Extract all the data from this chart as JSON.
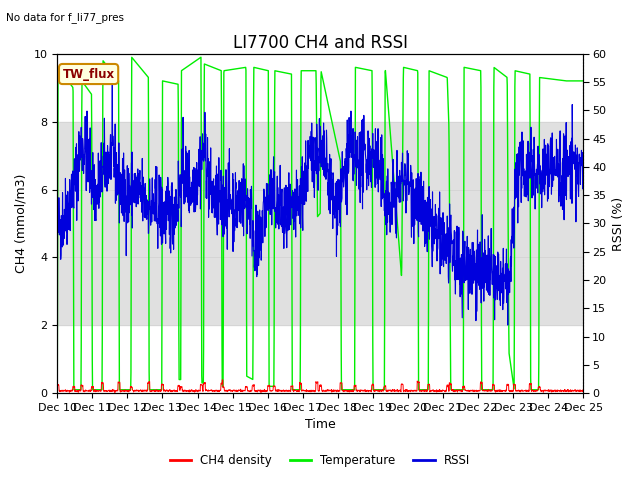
{
  "title": "LI7700 CH4 and RSSI",
  "subtitle": "No data for f_li77_pres",
  "annotation": "TW_flux",
  "xlabel": "Time",
  "ylabel_left": "CH4 (mmol/m3)",
  "ylabel_right": "RSSI (%)",
  "ylim_left": [
    0,
    10
  ],
  "ylim_right": [
    0,
    60
  ],
  "x_start": 10,
  "x_end": 25,
  "x_ticks": [
    10,
    11,
    12,
    13,
    14,
    15,
    16,
    17,
    18,
    19,
    20,
    21,
    22,
    23,
    24,
    25
  ],
  "x_tick_labels": [
    "Dec 10",
    "Dec 11",
    "Dec 12",
    "Dec 13",
    "Dec 14",
    "Dec 15",
    "Dec 16",
    "Dec 17",
    "Dec 18",
    "Dec 19",
    "Dec 20",
    "Dec 21",
    "Dec 22",
    "Dec 23",
    "Dec 24",
    "Dec 25"
  ],
  "bg_band_y1": 2,
  "bg_band_y2": 8,
  "bg_color": "#e0e0e0",
  "line_colors": {
    "ch4_density": "#ff0000",
    "temperature": "#00ee00",
    "rssi": "#0000dd"
  },
  "legend_labels": [
    "CH4 density",
    "Temperature",
    "RSSI"
  ],
  "title_fontsize": 12,
  "label_fontsize": 9,
  "tick_fontsize": 8
}
